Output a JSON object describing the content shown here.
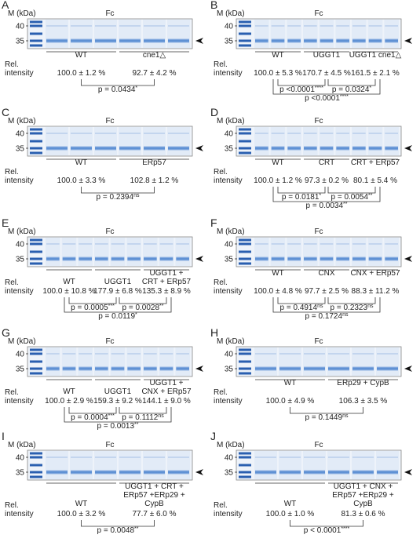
{
  "panels": [
    {
      "letter": "A",
      "marker_label": "M (kDa)",
      "title": "Fc",
      "markers": [
        "40",
        "35"
      ],
      "groups": [
        [
          "WT"
        ],
        [
          "cne1△"
        ]
      ],
      "rel_label": [
        "Rel.",
        "intensity"
      ],
      "values": [
        "100.0 ± 1.2 %",
        "92.7 ± 4.2 %"
      ],
      "pvalues": [
        {
          "text": "p = 0.0434",
          "sig": "*"
        }
      ]
    },
    {
      "letter": "B",
      "marker_label": "M (kDa)",
      "title": "Fc",
      "markers": [
        "40",
        "35"
      ],
      "groups": [
        [
          "WT"
        ],
        [
          "UGGT1"
        ],
        [
          "UGGT1 cne1△"
        ]
      ],
      "rel_label": [
        "Rel.",
        "intensity"
      ],
      "values": [
        "100.0 ± 5.3 %",
        "170.7 ± 4.5 %",
        "161.5 ± 2.1 %"
      ],
      "pvalues": [
        {
          "text": "p <0.0001",
          "sig": "****"
        },
        {
          "text": "p = 0.0324",
          "sig": "*"
        },
        {
          "text": "p <0.0001",
          "sig": "****"
        }
      ]
    },
    {
      "letter": "C",
      "marker_label": "M (kDa)",
      "title": "Fc",
      "markers": [
        "40",
        "35"
      ],
      "groups": [
        [
          "WT"
        ],
        [
          "ERp57"
        ]
      ],
      "rel_label": [
        "Rel.",
        "intensity"
      ],
      "values": [
        "100.0 ± 3.3 %",
        "102.8 ± 1.2 %"
      ],
      "pvalues": [
        {
          "text": "p = 0.2394",
          "sig": "ns"
        }
      ]
    },
    {
      "letter": "D",
      "marker_label": "M (kDa)",
      "title": "Fc",
      "markers": [
        "40",
        "35"
      ],
      "groups": [
        [
          "WT"
        ],
        [
          "CRT"
        ],
        [
          "CRT + ERp57"
        ]
      ],
      "rel_label": [
        "Rel.",
        "intensity"
      ],
      "values": [
        "100.0 ± 1.2 %",
        "97.3 ± 0.2 %",
        "80.1 ± 5.4 %"
      ],
      "pvalues": [
        {
          "text": "p = 0.0181",
          "sig": "*"
        },
        {
          "text": "p = 0.0054",
          "sig": "**"
        },
        {
          "text": "p = 0.0034",
          "sig": "**"
        }
      ]
    },
    {
      "letter": "E",
      "marker_label": "M (kDa)",
      "title": "Fc",
      "markers": [
        "40",
        "35"
      ],
      "groups": [
        [
          "WT"
        ],
        [
          "UGGT1"
        ],
        [
          "UGGT1 +",
          "CRT + ERp57"
        ]
      ],
      "rel_label": [
        "Rel.",
        "intensity"
      ],
      "values": [
        "100.0 ± 10.8 %",
        "177.9 ± 6.8 %",
        "135.3 ± 8.9 %"
      ],
      "pvalues": [
        {
          "text": "p = 0.0005",
          "sig": "***"
        },
        {
          "text": "p = 0.0028",
          "sig": "**"
        },
        {
          "text": "p = 0.0119",
          "sig": "*"
        }
      ]
    },
    {
      "letter": "F",
      "marker_label": "M (kDa)",
      "title": "Fc",
      "markers": [
        "40",
        "35"
      ],
      "groups": [
        [
          "WT"
        ],
        [
          "CNX"
        ],
        [
          "CNX + ERp57"
        ]
      ],
      "rel_label": [
        "Rel.",
        "intensity"
      ],
      "values": [
        "100.0 ± 4.8 %",
        "97.7 ± 2.5 %",
        "88.3 ± 11.2 %"
      ],
      "pvalues": [
        {
          "text": "p = 0.4914",
          "sig": "ns"
        },
        {
          "text": "p = 0.2323",
          "sig": "ns"
        },
        {
          "text": "p = 0.1724",
          "sig": "ns"
        }
      ]
    },
    {
      "letter": "G",
      "marker_label": "M (kDa)",
      "title": "Fc",
      "markers": [
        "40",
        "35"
      ],
      "groups": [
        [
          "WT"
        ],
        [
          "UGGT1"
        ],
        [
          "UGGT1 +",
          "CNX + ERp57"
        ]
      ],
      "rel_label": [
        "Rel.",
        "intensity"
      ],
      "values": [
        "100.0 ± 2.9 %",
        "159.3 ± 9.2 %",
        "144.1 ± 9.0 %"
      ],
      "pvalues": [
        {
          "text": "p = 0.0004",
          "sig": "***"
        },
        {
          "text": "p = 0.1112",
          "sig": "ns"
        },
        {
          "text": "p = 0.0013",
          "sig": "**"
        }
      ]
    },
    {
      "letter": "H",
      "marker_label": "M (kDa)",
      "title": "Fc",
      "markers": [
        "40",
        "35"
      ],
      "groups": [
        [
          "WT"
        ],
        [
          "ERp29 + CypB"
        ]
      ],
      "rel_label": [
        "Rel.",
        "intensity"
      ],
      "values": [
        "100.0 ± 4.9 %",
        "106.3 ± 3.5 %"
      ],
      "pvalues": [
        {
          "text": "p = 0.1449",
          "sig": "ns"
        }
      ]
    },
    {
      "letter": "I",
      "marker_label": "M (kDa)",
      "title": "Fc",
      "markers": [
        "40",
        "35"
      ],
      "groups": [
        [
          "WT"
        ],
        [
          "UGGT1 + CRT +",
          "ERp57 +ERp29 +",
          "CypB"
        ]
      ],
      "rel_label": [
        "Rel.",
        "intensity"
      ],
      "values": [
        "100.0 ± 3.2 %",
        "77.7 ± 6.0 %"
      ],
      "pvalues": [
        {
          "text": "p = 0.0048",
          "sig": "**"
        }
      ]
    },
    {
      "letter": "J",
      "marker_label": "M (kDa)",
      "title": "Fc",
      "markers": [
        "40",
        "35"
      ],
      "groups": [
        [
          "WT"
        ],
        [
          "UGGT1 + CNX +",
          "ERp57 +ERp29 +",
          "CypB"
        ]
      ],
      "rel_label": [
        "Rel.",
        "intensity"
      ],
      "values": [
        "100.0 ± 1.0 %",
        "81.3 ± 0.6 %"
      ],
      "pvalues": [
        {
          "text": "p < 0.0001",
          "sig": "****"
        }
      ]
    }
  ]
}
